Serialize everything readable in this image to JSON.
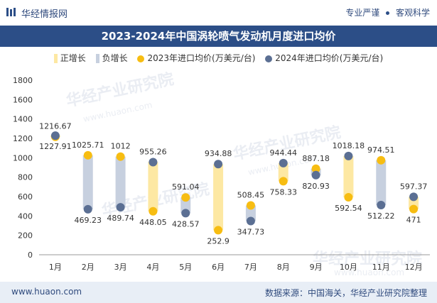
{
  "header": {
    "site_name": "华经情报网",
    "slogan_left": "专业严谨",
    "slogan_right": "客观科学",
    "title": "2023-2024年中国涡轮喷气发动机月度进口均价"
  },
  "footer": {
    "url": "www.huaon.com",
    "source": "数据来源：中国海关，华经产业研究院整理"
  },
  "watermark": {
    "text_cn": "华经产业研究院",
    "text_url": "www.huaon.com"
  },
  "colors": {
    "increase_bar": "#fde8a3",
    "decrease_bar": "#c7d0df",
    "series_2023": "#f7bd12",
    "series_2024": "#5b6f93",
    "brand": "#2c4e87"
  },
  "chart_data": {
    "type": "line",
    "title": "2023-2024年中国涡轮喷气发动机月度进口均价",
    "categories": [
      "1月",
      "2月",
      "3月",
      "4月",
      "5月",
      "6月",
      "7月",
      "8月",
      "9月",
      "10月",
      "11月",
      "12月"
    ],
    "series": [
      {
        "name": "2023年进口均价(万美元/台)",
        "values": [
          1216.67,
          1025.71,
          1012,
          448.05,
          591.04,
          252.9,
          508.45,
          758.33,
          887.18,
          592.54,
          974.51,
          471
        ]
      },
      {
        "name": "2024年进口均价(万美元/台)",
        "values": [
          1227.91,
          469.23,
          489.74,
          955.26,
          428.57,
          934.88,
          347.73,
          944.44,
          820.93,
          1018.18,
          512.22,
          597.37
        ]
      }
    ],
    "legend": [
      "正增长",
      "负增长",
      "2023年进口均价(万美元/台)",
      "2024年进口均价(万美元/台)"
    ],
    "yticks": [
      "0",
      "200",
      "400",
      "600",
      "800",
      "1000",
      "1200",
      "1400",
      "1600",
      "1800"
    ],
    "ylim": [
      0,
      1800
    ],
    "xlabel": "",
    "ylabel": "",
    "grid": false,
    "legend_position": "top"
  }
}
